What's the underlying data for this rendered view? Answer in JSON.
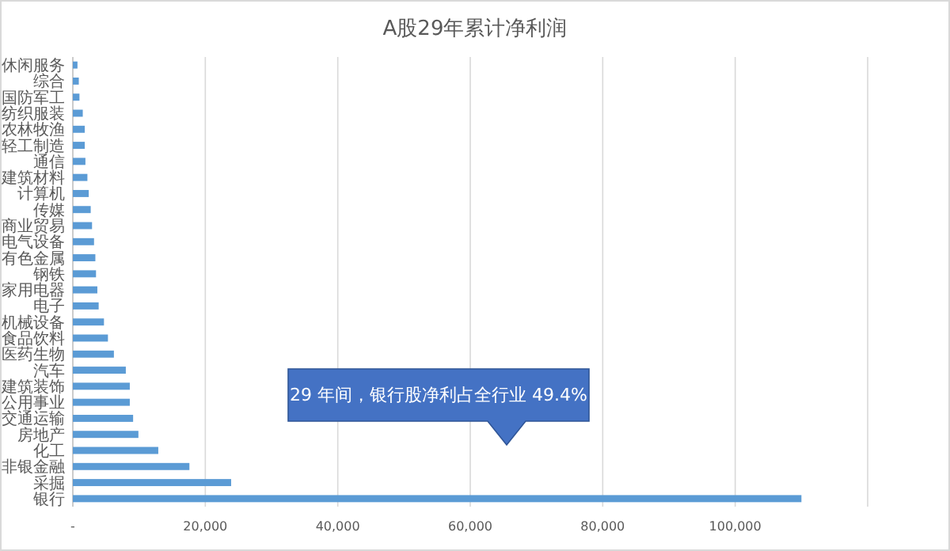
{
  "chart_data": {
    "type": "bar",
    "orientation": "horizontal",
    "title": "A股29年累计净利润",
    "categories": [
      "休闲服务",
      "综合",
      "国防军工",
      "纺织服装",
      "农林牧渔",
      "轻工制造",
      "通信",
      "建筑材料",
      "计算机",
      "传媒",
      "商业贸易",
      "电气设备",
      "有色金属",
      "钢铁",
      "家用电器",
      "电子",
      "机械设备",
      "食品饮料",
      "医药生物",
      "汽车",
      "建筑装饰",
      "公用事业",
      "交通运输",
      "房地产",
      "化工",
      "非银金融",
      "采掘",
      "银行"
    ],
    "values": [
      700,
      900,
      1000,
      1500,
      1800,
      1800,
      1900,
      2200,
      2400,
      2700,
      2900,
      3200,
      3400,
      3500,
      3700,
      3900,
      4700,
      5300,
      6200,
      8000,
      8600,
      8600,
      9100,
      9900,
      12900,
      17600,
      23900,
      110000
    ],
    "color": "#5b9bd5",
    "xlim": [
      0,
      120000
    ],
    "xticks": [
      {
        "value": 0,
        "label": "-"
      },
      {
        "value": 20000,
        "label": "20,000"
      },
      {
        "value": 40000,
        "label": "40,000"
      },
      {
        "value": 60000,
        "label": "60,000"
      },
      {
        "value": 80000,
        "label": "80,000"
      },
      {
        "value": 100000,
        "label": "100,000"
      }
    ],
    "grid": "x",
    "annotations": [
      "29 年间，银行股净利占全行业 49.4%"
    ]
  }
}
